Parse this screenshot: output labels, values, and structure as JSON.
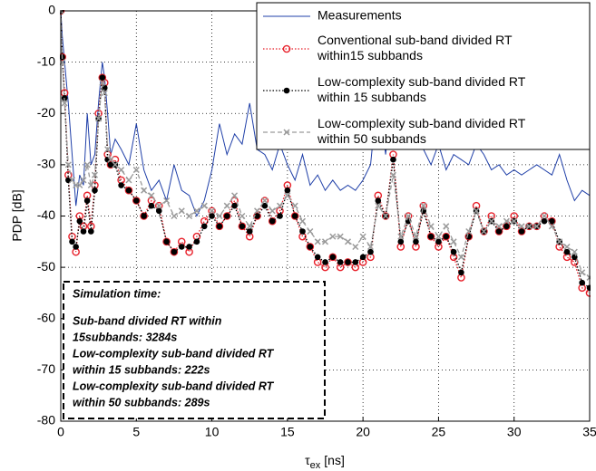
{
  "chart_data": {
    "type": "line",
    "ylabel": "PDP [dB]",
    "xlabel": "τ",
    "xlabel_subscript": "ex",
    "xlabel_unit": "[ns]",
    "xlim": [
      0,
      35
    ],
    "xticks": [
      0,
      5,
      10,
      15,
      20,
      25,
      30,
      35
    ],
    "ylim": [
      -80,
      0
    ],
    "yticks": [
      -80,
      -70,
      -60,
      -50,
      -40,
      -30,
      -20,
      -10,
      0
    ],
    "grid": true,
    "legend": "upper right",
    "x": [
      0,
      0.1,
      0.25,
      0.5,
      0.75,
      1,
      1.25,
      1.5,
      1.75,
      2,
      2.25,
      2.5,
      2.75,
      2.9,
      3.1,
      3.3,
      3.6,
      4,
      4.5,
      5,
      5.5,
      6,
      6.5,
      7,
      7.5,
      8,
      8.5,
      9,
      9.5,
      10,
      10.5,
      11,
      11.5,
      12,
      12.5,
      13,
      13.5,
      14,
      14.5,
      15,
      15.5,
      16,
      16.5,
      17,
      17.5,
      18,
      18.5,
      19,
      19.5,
      20,
      20.5,
      21,
      21.5,
      22,
      22.5,
      23,
      23.5,
      24,
      24.5,
      25,
      25.5,
      26,
      26.5,
      27,
      27.5,
      28,
      28.5,
      29,
      29.5,
      30,
      30.5,
      31,
      31.5,
      32,
      32.5,
      33,
      33.5,
      34,
      34.5,
      35
    ],
    "series": [
      {
        "name": [
          "Measurements"
        ],
        "color": "#1f3fa8",
        "linestyle": "solid",
        "marker": "none",
        "values": [
          0,
          -5,
          -10,
          -18,
          -28,
          -38,
          -32,
          -34,
          -20,
          -30,
          -28,
          -18,
          -10,
          -13,
          -20,
          -28,
          -25,
          -27,
          -30,
          -22,
          -31,
          -35,
          -33,
          -37,
          -30,
          -35,
          -36,
          -40,
          -37,
          -31,
          -22,
          -28,
          -24,
          -26,
          -18,
          -27,
          -28,
          -31,
          -26,
          -30,
          -33,
          -28,
          -34,
          -32,
          -35,
          -33,
          -35,
          -34,
          -35,
          -33,
          -30,
          -15,
          -28,
          -14,
          -24,
          -26,
          -25,
          -27,
          -30,
          -26,
          -31,
          -28,
          -29,
          -30,
          -26,
          -28,
          -31,
          -30,
          -32,
          -31,
          -32,
          -31,
          -30,
          -31,
          -32,
          -28,
          -33,
          -37,
          -35,
          -36
        ]
      },
      {
        "name": [
          "Conventional sub-band divided RT",
          "within15 subbands"
        ],
        "color": "#e8202a",
        "linestyle": "dotted",
        "marker": "circle",
        "values": [
          0,
          -9,
          -16,
          -32,
          -44,
          -47,
          -40,
          -42,
          -36,
          -42,
          -34,
          -20,
          -13,
          -14,
          -28,
          -30,
          -29,
          -33,
          -35,
          -37,
          -40,
          -37,
          -38,
          -45,
          -47,
          -45,
          -47,
          -44,
          -41,
          -39,
          -42,
          -40,
          -37,
          -42,
          -44,
          -40,
          -37,
          -41,
          -39,
          -34,
          -40,
          -44,
          -46,
          -49,
          -50,
          -48,
          -50,
          -49,
          -50,
          -49,
          -48,
          -36,
          -40,
          -28,
          -46,
          -40,
          -46,
          -38,
          -44,
          -46,
          -44,
          -48,
          -52,
          -44,
          -38,
          -43,
          -40,
          -43,
          -42,
          -40,
          -43,
          -42,
          -42,
          -40,
          -41,
          -46,
          -48,
          -49,
          -54,
          -55
        ]
      },
      {
        "name": [
          " Low-complexity sub-band divided RT",
          "within 15 subbands"
        ],
        "color": "#000000",
        "linestyle": "dotted",
        "marker": "dot",
        "values": [
          0,
          -9,
          -17,
          -33,
          -45,
          -46,
          -41,
          -43,
          -37,
          -43,
          -35,
          -21,
          -13,
          -15,
          -29,
          -30,
          -30,
          -34,
          -35,
          -37,
          -40,
          -38,
          -39,
          -45,
          -47,
          -46,
          -46,
          -45,
          -42,
          -40,
          -42,
          -40,
          -38,
          -42,
          -43,
          -40,
          -38,
          -41,
          -40,
          -35,
          -40,
          -43,
          -46,
          -48,
          -49,
          -48,
          -49,
          -49,
          -49,
          -48,
          -47,
          -37,
          -40,
          -29,
          -45,
          -41,
          -45,
          -39,
          -44,
          -45,
          -44,
          -47,
          -51,
          -44,
          -39,
          -43,
          -41,
          -43,
          -42,
          -41,
          -43,
          -42,
          -42,
          -41,
          -41,
          -45,
          -47,
          -48,
          -53,
          -54
        ]
      },
      {
        "name": [
          "Low-complexity sub-band divided RT",
          "within 50 subbands"
        ],
        "color": "#9a9a9a",
        "linestyle": "dashed",
        "marker": "x",
        "values": [
          0,
          -10,
          -18,
          -30,
          -33,
          -34,
          -34,
          -33,
          -30,
          -34,
          -32,
          -21,
          -14,
          -16,
          -27,
          -29,
          -30,
          -31,
          -33,
          -31,
          -35,
          -36,
          -38,
          -37,
          -40,
          -39,
          -40,
          -39,
          -38,
          -39,
          -40,
          -38,
          -36,
          -40,
          -42,
          -39,
          -37,
          -39,
          -38,
          -36,
          -38,
          -41,
          -43,
          -45,
          -45,
          -44,
          -44,
          -45,
          -46,
          -44,
          -46,
          -38,
          -40,
          -32,
          -44,
          -40,
          -44,
          -38,
          -42,
          -44,
          -42,
          -45,
          -48,
          -43,
          -39,
          -43,
          -41,
          -42,
          -41,
          -41,
          -42,
          -42,
          -42,
          -40,
          -42,
          -45,
          -46,
          -47,
          -51,
          -52
        ]
      }
    ],
    "annotation": [
      "Simulation time:",
      "Sub-band divided RT within",
      "15subbands: 3284s",
      "Low-complexity sub-band divided RT",
      "within 15 subbands: 222s",
      "Low-complexity sub-band divided RT",
      "within 50 subbands: 289s"
    ]
  }
}
